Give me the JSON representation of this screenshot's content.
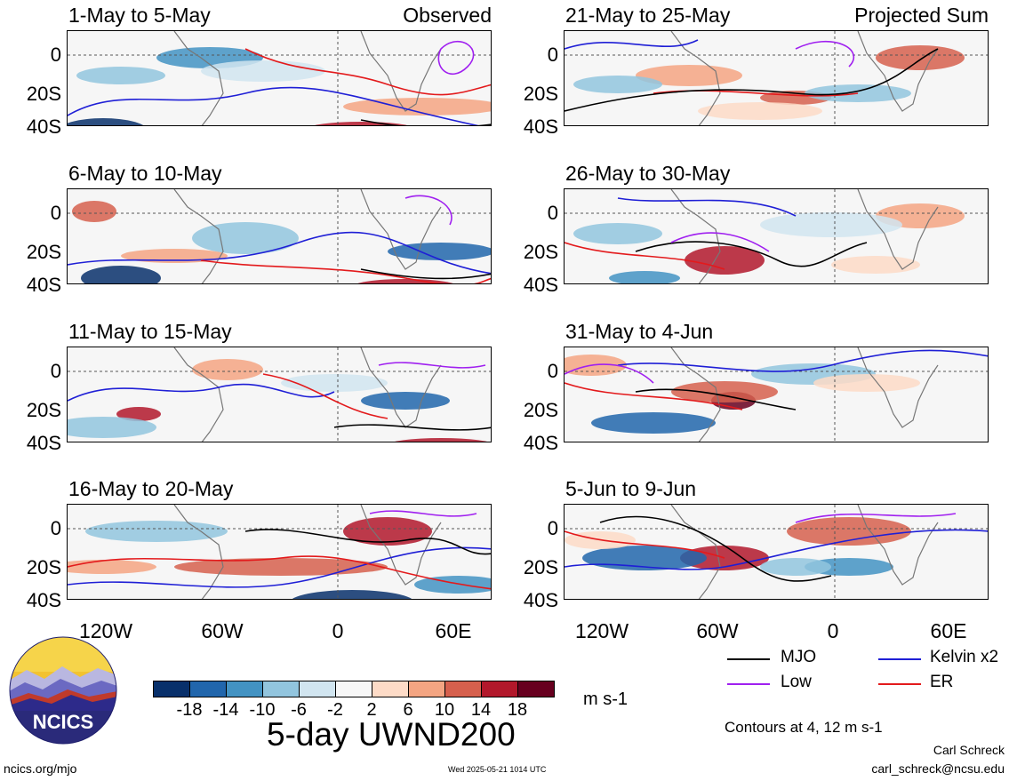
{
  "panels": [
    {
      "title": "1-May to 5-May",
      "tag": "Observed",
      "column": "left",
      "row": 0
    },
    {
      "title": "6-May to 10-May",
      "tag": "",
      "column": "left",
      "row": 1
    },
    {
      "title": "11-May to 15-May",
      "tag": "",
      "column": "left",
      "row": 2
    },
    {
      "title": "16-May to 20-May",
      "tag": "",
      "column": "left",
      "row": 3
    },
    {
      "title": "21-May to 25-May",
      "tag": "Projected Sum",
      "column": "right",
      "row": 0
    },
    {
      "title": "26-May to 30-May",
      "tag": "",
      "column": "right",
      "row": 1
    },
    {
      "title": "31-May to 4-Jun",
      "tag": "",
      "column": "right",
      "row": 2
    },
    {
      "title": "5-Jun to 9-Jun",
      "tag": "",
      "column": "right",
      "row": 3
    }
  ],
  "y_axis_labels": [
    "0",
    "20S",
    "40S"
  ],
  "x_axis_labels": [
    "120W",
    "60W",
    "0",
    "60E"
  ],
  "colorbar": {
    "ticks": [
      "-18",
      "-14",
      "-10",
      "-6",
      "-2",
      "2",
      "6",
      "10",
      "14",
      "18"
    ],
    "colors": [
      "#08306b",
      "#2166ac",
      "#4393c3",
      "#92c5de",
      "#d1e5f0",
      "#f7f7f7",
      "#fddbc7",
      "#f4a582",
      "#d6604d",
      "#b2182b",
      "#67001f"
    ],
    "units": "m s-1"
  },
  "legend": {
    "items": [
      {
        "label": "MJO",
        "color": "#000000"
      },
      {
        "label": "Kelvin x2",
        "color": "#1f1fd6"
      },
      {
        "label": "Low",
        "color": "#a020f0"
      },
      {
        "label": "ER",
        "color": "#e31a1c"
      }
    ],
    "contours_note": "Contours at 4, 12 m s-1"
  },
  "main_title": "5-day UWND200",
  "logo_text": "NCICS",
  "footer": {
    "site": "ncics.org/mjo",
    "timestamp": "Wed 2025-05-21 1014 UTC",
    "author": "Carl Schreck",
    "email": "carl_schreck@ncsu.edu"
  }
}
